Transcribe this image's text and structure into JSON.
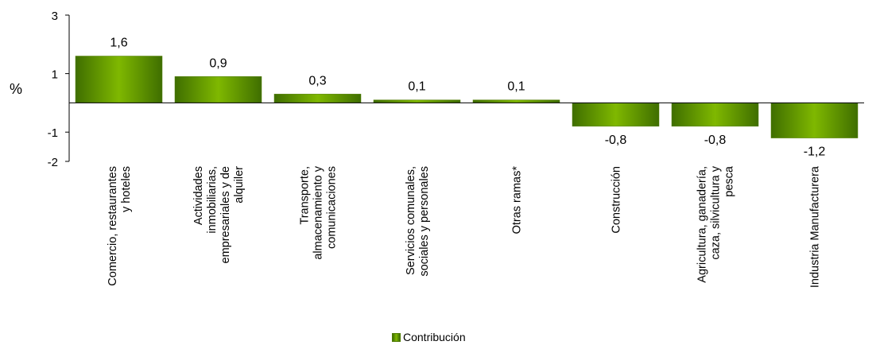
{
  "chart_data": {
    "type": "bar",
    "title": "",
    "xlabel": "",
    "ylabel": "%",
    "ylim": [
      -2,
      3
    ],
    "yticks": [
      3,
      1,
      -1,
      -2
    ],
    "categories": [
      [
        "Comercio, restaurantes",
        "y hoteles"
      ],
      [
        "Actividades",
        "inmobiliarias,",
        "empresariales y de",
        "alquiler"
      ],
      [
        "Transporte,",
        "almacenamiento y",
        "comunicaciones"
      ],
      [
        "Servicios comunales,",
        "sociales y personales"
      ],
      [
        "Otras ramas*"
      ],
      [
        "Construcción"
      ],
      [
        "Agricultura, ganadería,",
        "caza, silvicultura y",
        "pesca"
      ],
      [
        "Industria Manufacturera"
      ]
    ],
    "series": [
      {
        "name": "Contribución",
        "values": [
          1.6,
          0.9,
          0.3,
          0.1,
          0.1,
          -0.8,
          -0.8,
          -1.2
        ],
        "labels": [
          "1,6",
          "0,9",
          "0,3",
          "0,1",
          "0,1",
          "-0,8",
          "-0,8",
          "-1,2"
        ]
      }
    ],
    "colors": {
      "bar_dark": "#3f6e00",
      "bar_light": "#7fb800",
      "bar_edge": "#4e7a00"
    },
    "grid": false,
    "legend_position": "bottom"
  }
}
